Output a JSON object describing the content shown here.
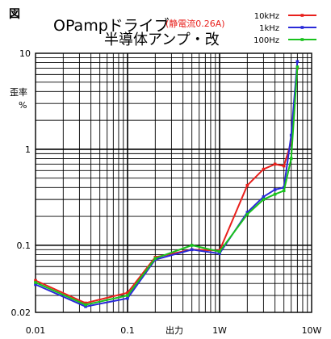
{
  "figure_label": "図",
  "title_line1": "OPampドライブ",
  "title_note": "(静電流0.26A)",
  "title_line2": "半導体アンプ・改",
  "colors": {
    "10kHz": "#e8201c",
    "1kHz": "#2a2ad8",
    "100Hz": "#19c21d",
    "note": "#e8201c"
  },
  "chart_data": {
    "type": "line",
    "xscale": "log",
    "yscale": "log",
    "xlim": [
      0.01,
      10
    ],
    "ylim": [
      0.02,
      10
    ],
    "grid": true,
    "legend_position": "top-right",
    "xlabel": "出力",
    "ylabel": "歪率 %",
    "x_tick_labels": [
      "0.01",
      "0.1",
      "1W",
      "10W"
    ],
    "y_tick_labels": [
      "10",
      "1",
      "0.1",
      "0.02"
    ],
    "series": [
      {
        "name": "10kHz",
        "color": "#e8201c",
        "x": [
          0.01,
          0.035,
          0.1,
          0.2,
          0.5,
          1.0,
          2.0,
          3.0,
          4.0,
          5.0,
          6.0,
          7.0
        ],
        "y": [
          0.043,
          0.025,
          0.032,
          0.075,
          0.09,
          0.088,
          0.42,
          0.62,
          0.7,
          0.67,
          1.2,
          7.0
        ]
      },
      {
        "name": "1kHz",
        "color": "#2a2ad8",
        "x": [
          0.01,
          0.035,
          0.1,
          0.2,
          0.5,
          1.0,
          2.0,
          3.0,
          4.0,
          5.0,
          6.0,
          7.0
        ],
        "y": [
          0.039,
          0.023,
          0.028,
          0.071,
          0.09,
          0.082,
          0.22,
          0.32,
          0.38,
          0.4,
          1.4,
          8.2
        ]
      },
      {
        "name": "100Hz",
        "color": "#19c21d",
        "x": [
          0.01,
          0.035,
          0.1,
          0.2,
          0.5,
          1.0,
          2.0,
          3.0,
          4.0,
          5.0,
          6.0,
          7.0
        ],
        "y": [
          0.041,
          0.024,
          0.03,
          0.073,
          0.1,
          0.086,
          0.21,
          0.3,
          0.34,
          0.37,
          0.8,
          7.2
        ]
      }
    ]
  }
}
